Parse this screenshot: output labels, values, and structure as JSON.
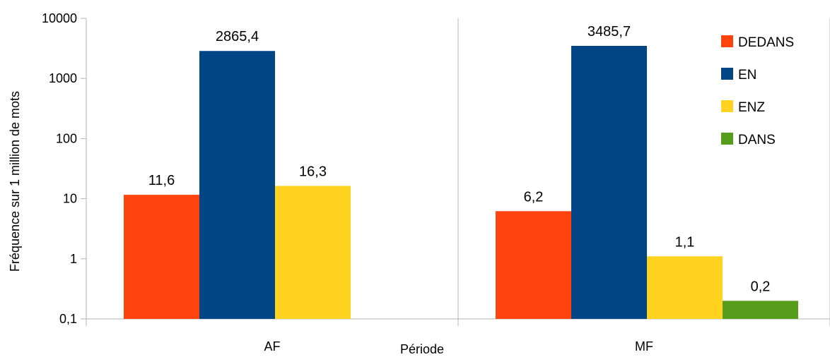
{
  "chart_data": {
    "type": "bar",
    "y_scale": "log",
    "ylim": [
      0.1,
      10000
    ],
    "yticks": [
      {
        "value": 0.1,
        "label": "0,1"
      },
      {
        "value": 1,
        "label": "1"
      },
      {
        "value": 10,
        "label": "10"
      },
      {
        "value": 100,
        "label": "100"
      },
      {
        "value": 1000,
        "label": "1000"
      },
      {
        "value": 10000,
        "label": "10000"
      }
    ],
    "xlabel": "Période",
    "ylabel": "Fréquence sur 1 million de mots",
    "categories": [
      "AF",
      "MF"
    ],
    "series": [
      {
        "name": "DEDANS",
        "color": "#ff420e",
        "values": [
          11.6,
          6.2
        ],
        "labels": [
          "11,6",
          "6,2"
        ]
      },
      {
        "name": "EN",
        "color": "#004586",
        "values": [
          2865.4,
          3485.7
        ],
        "labels": [
          "2865,4",
          "3485,7"
        ]
      },
      {
        "name": "ENZ",
        "color": "#ffd320",
        "values": [
          16.3,
          1.1
        ],
        "labels": [
          "16,3",
          "1,1"
        ]
      },
      {
        "name": "DANS",
        "color": "#579d1c",
        "values": [
          null,
          0.2
        ],
        "labels": [
          null,
          "0,2"
        ]
      }
    ],
    "grid": {
      "horizontal": false,
      "vertical": true
    },
    "legend": "top-right"
  }
}
